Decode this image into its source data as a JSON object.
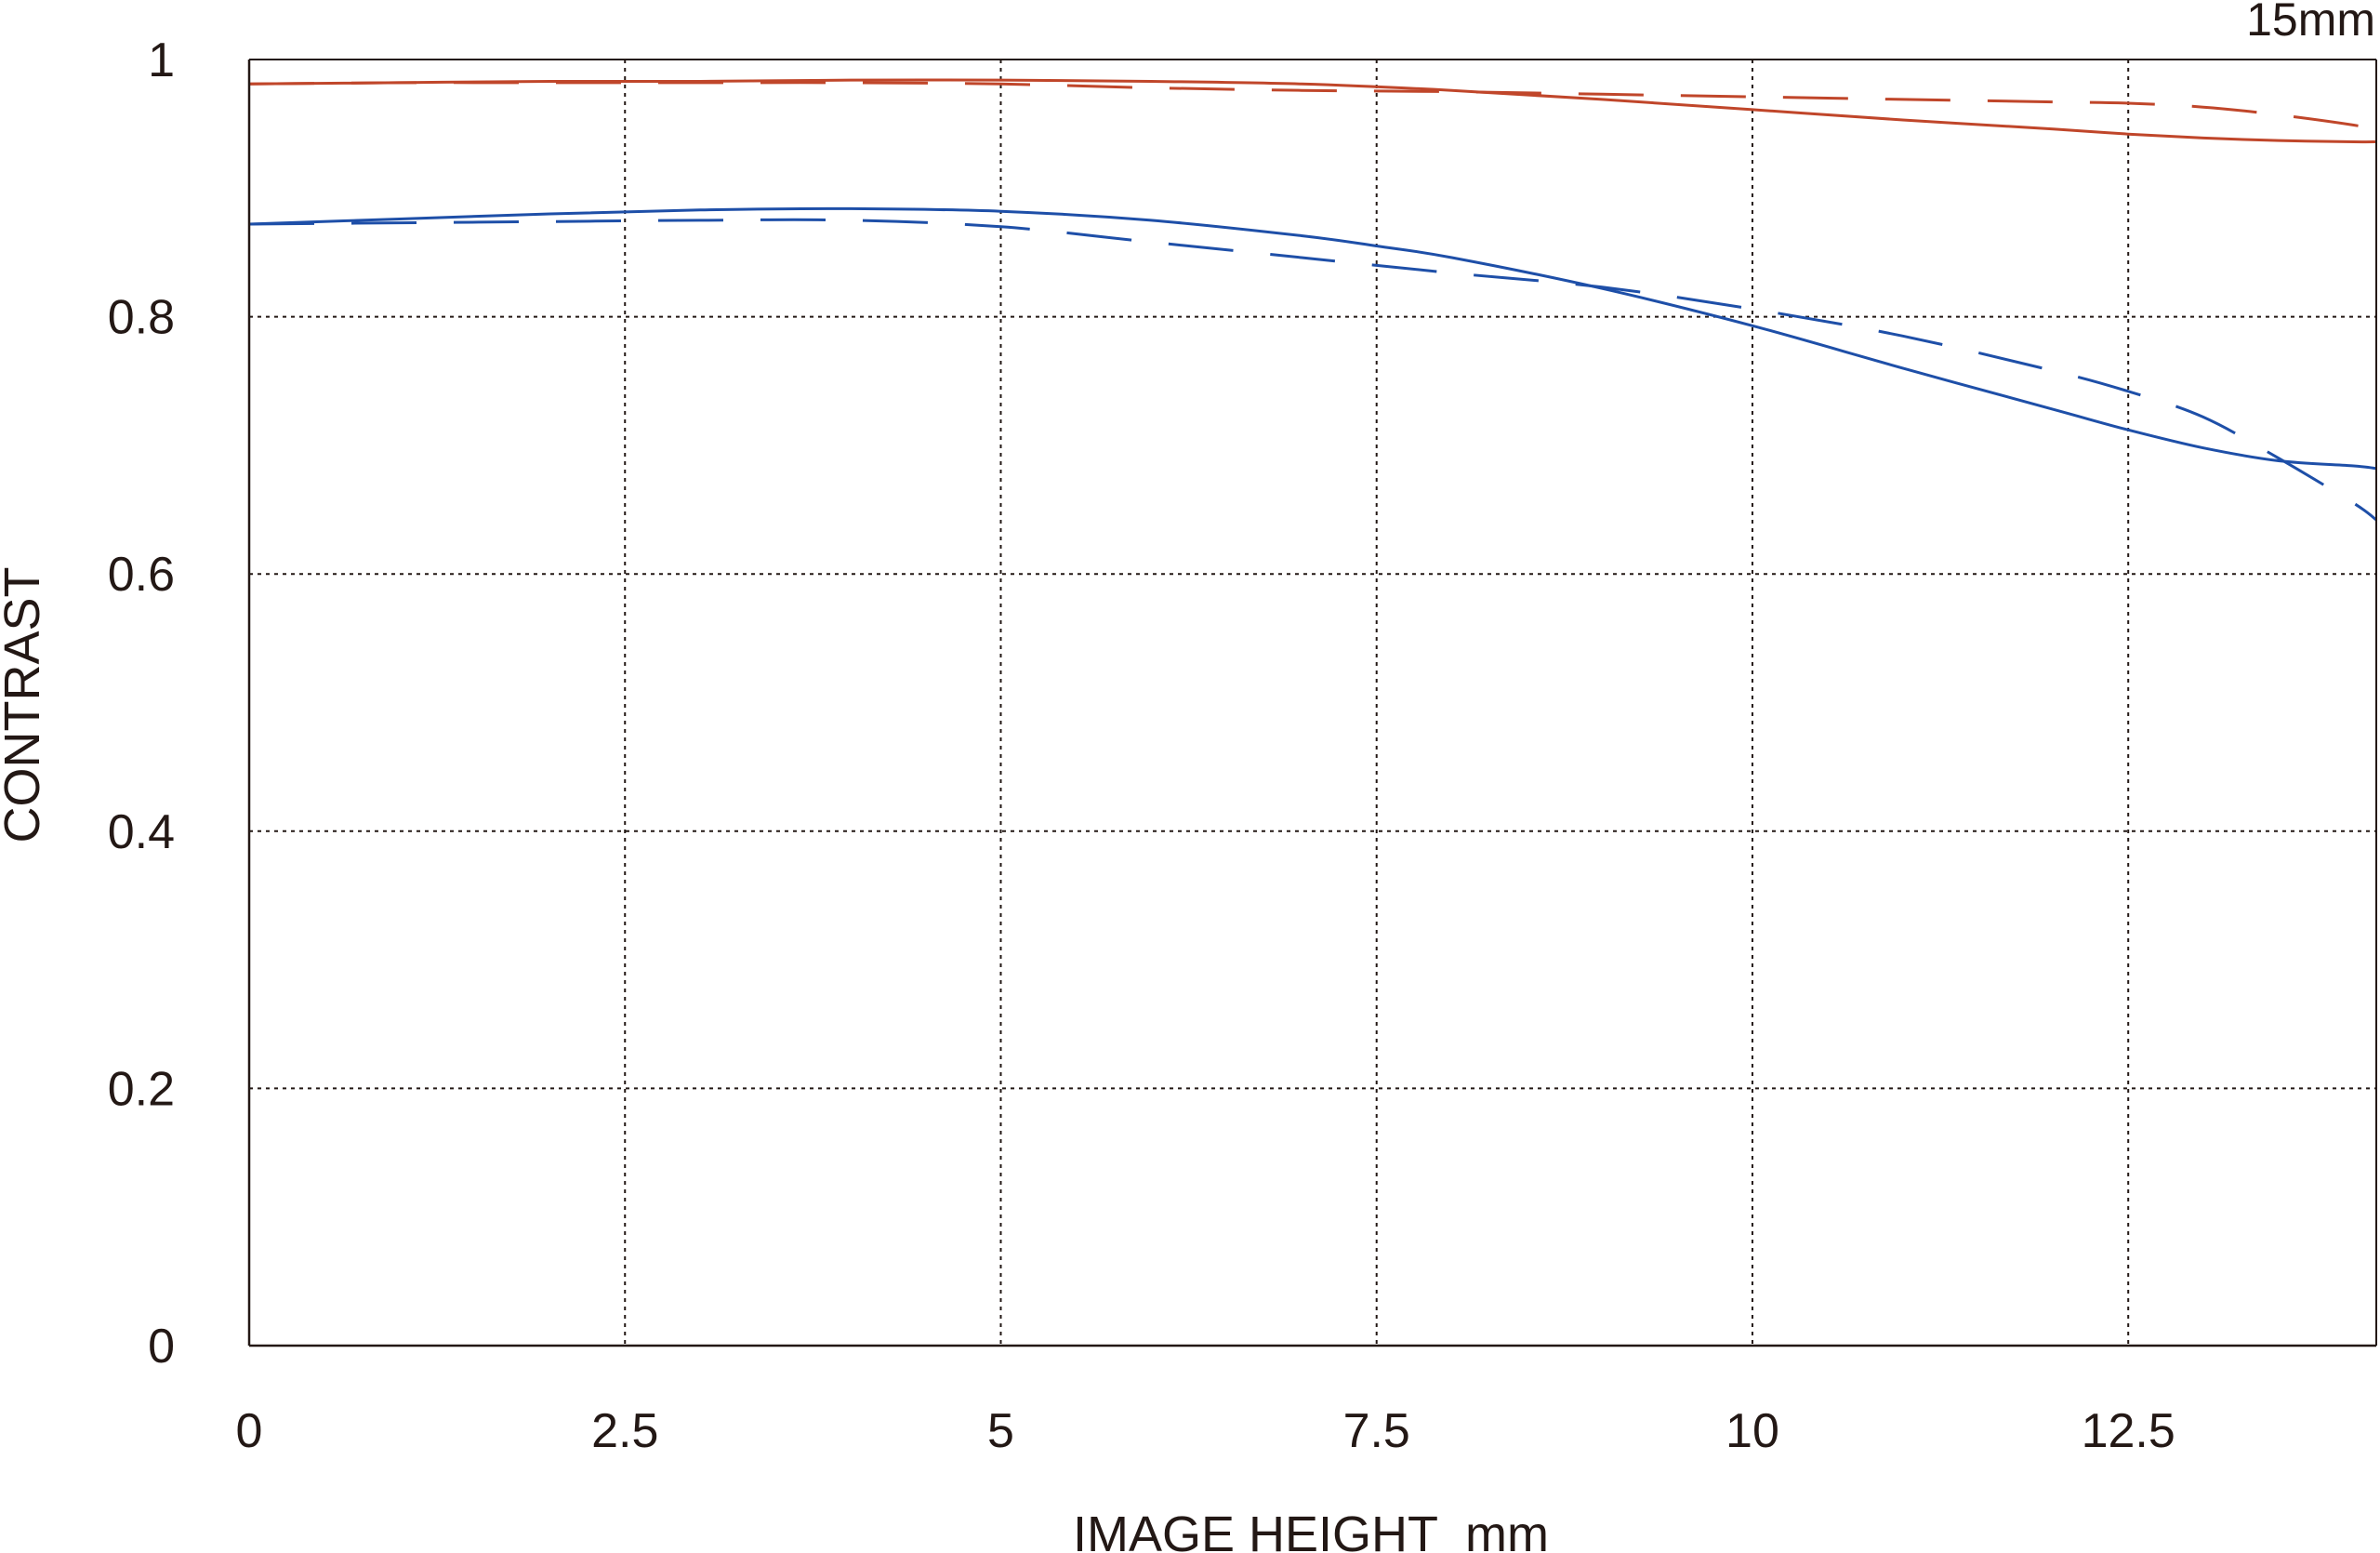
{
  "chart_data": {
    "type": "line",
    "title": "",
    "corner_label": "15mm",
    "xlabel": "IMAGE HEIGHT  mm",
    "ylabel": "CONTRAST",
    "xlim": [
      0,
      14.15
    ],
    "ylim": [
      0,
      1
    ],
    "x_ticks": [
      0,
      2.5,
      5,
      7.5,
      10,
      12.5
    ],
    "x_tick_labels": [
      "0",
      "2.5",
      "5",
      "7.5",
      "10",
      "12.5"
    ],
    "y_ticks": [
      0,
      0.2,
      0.4,
      0.6,
      0.8,
      1
    ],
    "y_tick_labels": [
      "0",
      "0.2",
      "0.4",
      "0.6",
      "0.8",
      "1"
    ],
    "grid": true,
    "grid_style": "dotted",
    "legend": "none",
    "colors": {
      "red": "#c0462a",
      "blue": "#1e4fa8",
      "axis": "#231815",
      "grid": "#231815"
    },
    "series": [
      {
        "color": "red",
        "style": "solid",
        "x": [
          0,
          1,
          2,
          3,
          4,
          5,
          6,
          7,
          8,
          9,
          10,
          11,
          12,
          12.5,
          13,
          13.5,
          14,
          14.15
        ],
        "y": [
          0.981,
          0.982,
          0.983,
          0.983,
          0.984,
          0.984,
          0.983,
          0.981,
          0.976,
          0.969,
          0.961,
          0.953,
          0.946,
          0.942,
          0.939,
          0.937,
          0.936,
          0.936
        ]
      },
      {
        "color": "red",
        "style": "dashed",
        "x": [
          0,
          1,
          2,
          3,
          4,
          5,
          6,
          7,
          8,
          9,
          10,
          11,
          12,
          12.5,
          13,
          13.5,
          14,
          14.15
        ],
        "y": [
          0.981,
          0.982,
          0.982,
          0.982,
          0.982,
          0.981,
          0.978,
          0.976,
          0.975,
          0.973,
          0.971,
          0.969,
          0.967,
          0.966,
          0.963,
          0.957,
          0.949,
          0.945
        ]
      },
      {
        "color": "blue",
        "style": "solid",
        "x": [
          0,
          1,
          2,
          3,
          4,
          5,
          6,
          7,
          7.5,
          8,
          9,
          10,
          11,
          12,
          12.5,
          13,
          13.5,
          14,
          14.15
        ],
        "y": [
          0.872,
          0.876,
          0.88,
          0.883,
          0.884,
          0.882,
          0.875,
          0.863,
          0.855,
          0.846,
          0.822,
          0.793,
          0.76,
          0.728,
          0.712,
          0.698,
          0.688,
          0.684,
          0.682
        ]
      },
      {
        "color": "blue",
        "style": "dashed",
        "x": [
          0,
          1,
          2,
          3,
          4,
          5,
          6,
          7,
          8,
          9,
          10,
          11,
          12,
          12.5,
          13,
          13.5,
          14,
          14.15
        ],
        "y": [
          0.872,
          0.873,
          0.874,
          0.875,
          0.875,
          0.87,
          0.858,
          0.846,
          0.834,
          0.823,
          0.806,
          0.785,
          0.758,
          0.742,
          0.722,
          0.69,
          0.655,
          0.642
        ]
      }
    ]
  }
}
